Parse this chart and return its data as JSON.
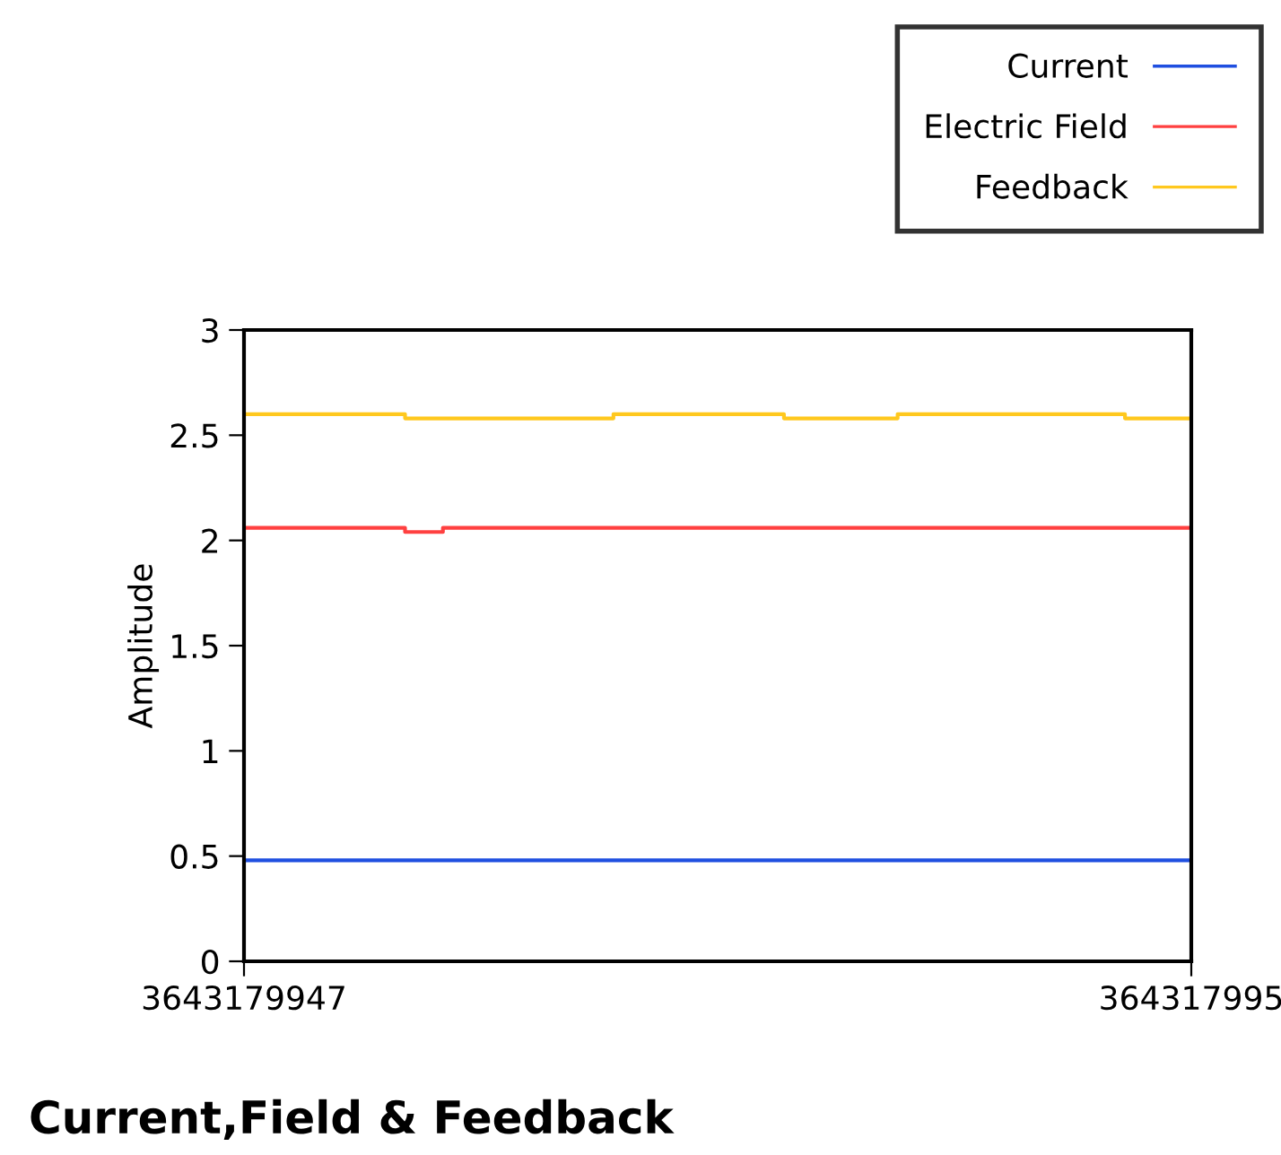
{
  "chart_data": {
    "type": "step",
    "title": "Current,Field & Feedback",
    "ylabel": "Amplitude",
    "categories": [
      "3643179947",
      null,
      null,
      null,
      null,
      null,
      null,
      null,
      null,
      null,
      null,
      null,
      null,
      null,
      null,
      null,
      null,
      null,
      null,
      null,
      null,
      null,
      null,
      null,
      null,
      null,
      null,
      null,
      null,
      null,
      null,
      null,
      null,
      null,
      null,
      null,
      null,
      null,
      null,
      null,
      null,
      null,
      null,
      null,
      null,
      null,
      null,
      null,
      null,
      null,
      null,
      null,
      null,
      null,
      null,
      null,
      null,
      null,
      null,
      null,
      null,
      null,
      null,
      null,
      null,
      null,
      null,
      null,
      null,
      null,
      null,
      null,
      null,
      null,
      null,
      null,
      null,
      null,
      null,
      null,
      null,
      null,
      null,
      null,
      null,
      null,
      null,
      null,
      null,
      null,
      null,
      null,
      null,
      null,
      null,
      null,
      null,
      null,
      null,
      null,
      "364317995"
    ],
    "ylim": [
      0,
      3
    ],
    "yticks": [
      0,
      0.5,
      1,
      1.5,
      2,
      2.5,
      3
    ],
    "grid": false,
    "legend": "top right",
    "series": [
      {
        "name": "Current",
        "color": "#1f4fe0",
        "values": [
          0.48,
          0.48,
          0.48,
          0.48,
          0.48,
          0.48,
          0.48,
          0.48,
          0.48,
          0.48,
          0.48,
          0.48,
          0.48,
          0.48,
          0.48,
          0.48,
          0.48,
          0.48,
          0.48,
          0.48,
          0.48,
          0.48,
          0.48,
          0.48,
          0.48,
          0.48,
          0.48,
          0.48,
          0.48,
          0.48,
          0.48,
          0.48,
          0.48,
          0.48,
          0.48,
          0.48,
          0.48,
          0.48,
          0.48,
          0.48,
          0.48,
          0.48,
          0.48,
          0.48,
          0.48,
          0.48,
          0.48,
          0.48,
          0.48,
          0.48,
          0.48,
          0.48,
          0.48,
          0.48,
          0.48,
          0.48,
          0.48,
          0.48,
          0.48,
          0.48,
          0.48,
          0.48,
          0.48,
          0.48,
          0.48,
          0.48,
          0.48,
          0.48,
          0.48,
          0.48,
          0.48,
          0.48,
          0.48,
          0.48,
          0.48,
          0.48,
          0.48,
          0.48,
          0.48,
          0.48,
          0.48,
          0.48,
          0.48,
          0.48,
          0.48,
          0.48,
          0.48,
          0.48,
          0.48,
          0.48,
          0.48,
          0.48,
          0.48,
          0.48,
          0.48,
          0.48,
          0.48,
          0.48,
          0.48,
          0.48,
          0.48
        ]
      },
      {
        "name": "Electric Field",
        "color": "#ff4040",
        "values": [
          2.06,
          2.06,
          2.06,
          2.06,
          2.06,
          2.06,
          2.06,
          2.06,
          2.06,
          2.06,
          2.06,
          2.06,
          2.06,
          2.06,
          2.06,
          2.06,
          2.06,
          2.04,
          2.04,
          2.04,
          2.04,
          2.06,
          2.06,
          2.06,
          2.06,
          2.06,
          2.06,
          2.06,
          2.06,
          2.06,
          2.06,
          2.06,
          2.06,
          2.06,
          2.06,
          2.06,
          2.06,
          2.06,
          2.06,
          2.06,
          2.06,
          2.06,
          2.06,
          2.06,
          2.06,
          2.06,
          2.06,
          2.06,
          2.06,
          2.06,
          2.06,
          2.06,
          2.06,
          2.06,
          2.06,
          2.06,
          2.06,
          2.06,
          2.06,
          2.06,
          2.06,
          2.06,
          2.06,
          2.06,
          2.06,
          2.06,
          2.06,
          2.06,
          2.06,
          2.06,
          2.06,
          2.06,
          2.06,
          2.06,
          2.06,
          2.06,
          2.06,
          2.06,
          2.06,
          2.06,
          2.06,
          2.06,
          2.06,
          2.06,
          2.06,
          2.06,
          2.06,
          2.06,
          2.06,
          2.06,
          2.06,
          2.06,
          2.06,
          2.06,
          2.06,
          2.06,
          2.06,
          2.06,
          2.06,
          2.06,
          2.06
        ]
      },
      {
        "name": "Feedback",
        "color": "#ffc81e",
        "values": [
          2.6,
          2.6,
          2.6,
          2.6,
          2.6,
          2.6,
          2.6,
          2.6,
          2.6,
          2.6,
          2.6,
          2.6,
          2.6,
          2.6,
          2.6,
          2.6,
          2.6,
          2.58,
          2.58,
          2.58,
          2.58,
          2.58,
          2.58,
          2.58,
          2.58,
          2.58,
          2.58,
          2.58,
          2.58,
          2.58,
          2.58,
          2.58,
          2.58,
          2.58,
          2.58,
          2.58,
          2.58,
          2.58,
          2.58,
          2.6,
          2.6,
          2.6,
          2.6,
          2.6,
          2.6,
          2.6,
          2.6,
          2.6,
          2.6,
          2.6,
          2.6,
          2.6,
          2.6,
          2.6,
          2.6,
          2.6,
          2.6,
          2.58,
          2.58,
          2.58,
          2.58,
          2.58,
          2.58,
          2.58,
          2.58,
          2.58,
          2.58,
          2.58,
          2.58,
          2.6,
          2.6,
          2.6,
          2.6,
          2.6,
          2.6,
          2.6,
          2.6,
          2.6,
          2.6,
          2.6,
          2.6,
          2.6,
          2.6,
          2.6,
          2.6,
          2.6,
          2.6,
          2.6,
          2.6,
          2.6,
          2.6,
          2.6,
          2.6,
          2.58,
          2.58,
          2.58,
          2.58,
          2.58,
          2.58,
          2.58,
          2.58
        ]
      }
    ]
  }
}
